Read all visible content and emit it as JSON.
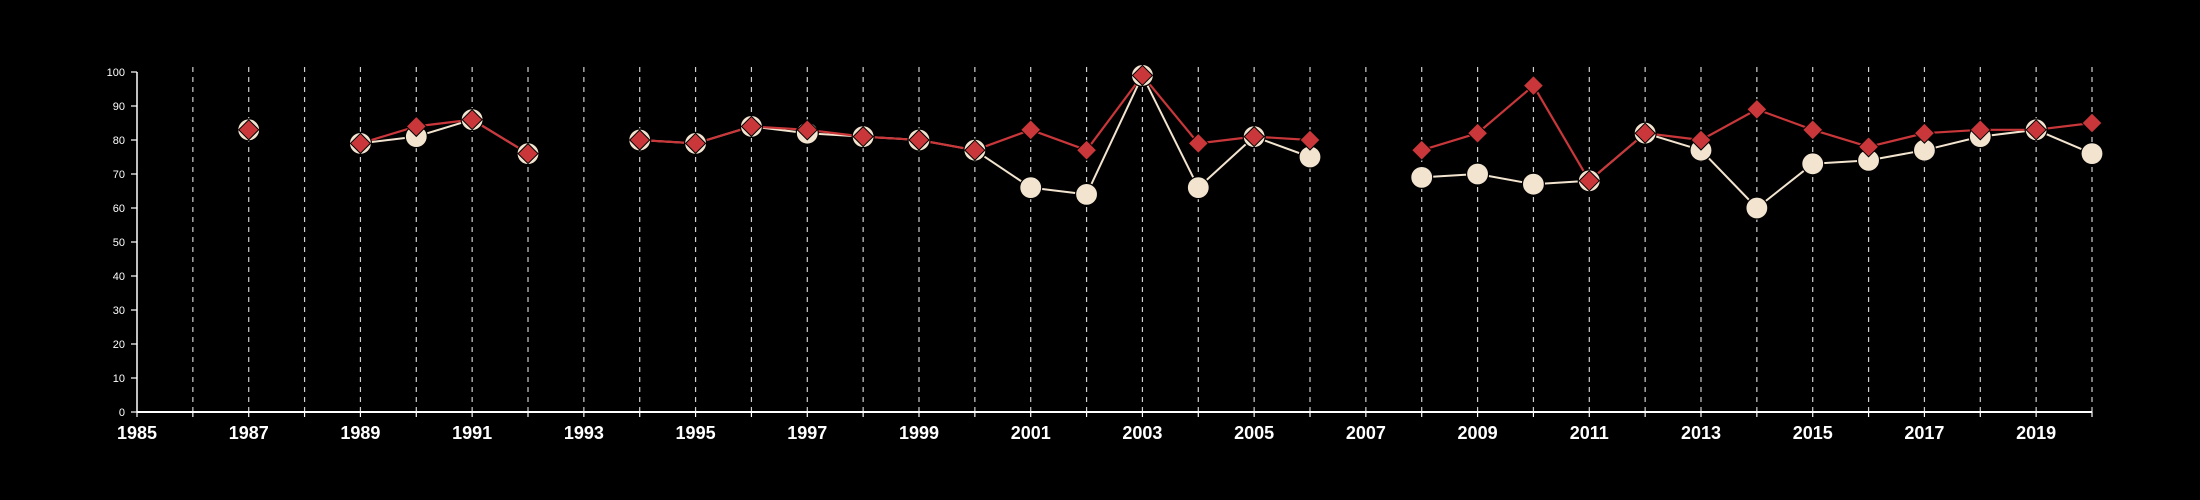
{
  "chart_data": {
    "type": "line",
    "title": "",
    "xlabel": "",
    "ylabel": "",
    "xlim": [
      1985,
      2020
    ],
    "ylim": [
      0,
      100
    ],
    "x_ticks": [
      1985,
      1987,
      1989,
      1991,
      1993,
      1995,
      1997,
      1999,
      2001,
      2003,
      2005,
      2007,
      2009,
      2011,
      2013,
      2015,
      2017,
      2019
    ],
    "y_ticks": [
      0,
      10,
      20,
      30,
      40,
      50,
      60,
      70,
      80,
      90,
      100
    ],
    "grid": "vertical dashed lines at every year",
    "colors": {
      "background": "#000000",
      "axis": "#ffffff",
      "grid": "#cfcfcf",
      "series_a": "#f2e4cf",
      "series_b": "#c9373a"
    },
    "series": [
      {
        "marker": "circle",
        "color": "#f2e4cf",
        "points": [
          [
            1987,
            83
          ],
          [
            1989,
            79
          ],
          [
            1990,
            81
          ],
          [
            1991,
            86
          ],
          [
            1992,
            76
          ],
          [
            1994,
            80
          ],
          [
            1995,
            79
          ],
          [
            1996,
            84
          ],
          [
            1997,
            82
          ],
          [
            1998,
            81
          ],
          [
            1999,
            80
          ],
          [
            2000,
            77
          ],
          [
            2001,
            66
          ],
          [
            2002,
            64
          ],
          [
            2003,
            99
          ],
          [
            2004,
            66
          ],
          [
            2005,
            81
          ],
          [
            2006,
            75
          ],
          [
            2008,
            69
          ],
          [
            2009,
            70
          ],
          [
            2010,
            67
          ],
          [
            2011,
            68
          ],
          [
            2012,
            82
          ],
          [
            2013,
            77
          ],
          [
            2014,
            60
          ],
          [
            2015,
            73
          ],
          [
            2016,
            74
          ],
          [
            2017,
            77
          ],
          [
            2018,
            81
          ],
          [
            2019,
            83
          ],
          [
            2020,
            76
          ]
        ]
      },
      {
        "marker": "diamond",
        "color": "#c9373a",
        "points": [
          [
            1987,
            83
          ],
          [
            1989,
            79
          ],
          [
            1990,
            84
          ],
          [
            1991,
            86
          ],
          [
            1992,
            76
          ],
          [
            1994,
            80
          ],
          [
            1995,
            79
          ],
          [
            1996,
            84
          ],
          [
            1997,
            83
          ],
          [
            1998,
            81
          ],
          [
            1999,
            80
          ],
          [
            2000,
            77
          ],
          [
            2001,
            83
          ],
          [
            2002,
            77
          ],
          [
            2003,
            99
          ],
          [
            2004,
            79
          ],
          [
            2005,
            81
          ],
          [
            2006,
            80
          ],
          [
            2008,
            77
          ],
          [
            2009,
            82
          ],
          [
            2010,
            96
          ],
          [
            2011,
            68
          ],
          [
            2012,
            82
          ],
          [
            2013,
            80
          ],
          [
            2014,
            89
          ],
          [
            2015,
            83
          ],
          [
            2016,
            78
          ],
          [
            2017,
            82
          ],
          [
            2018,
            83
          ],
          [
            2019,
            83
          ],
          [
            2020,
            85
          ]
        ]
      }
    ]
  }
}
